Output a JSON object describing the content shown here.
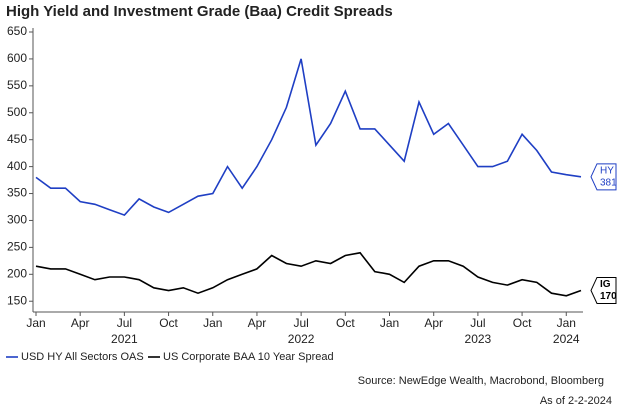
{
  "chart_data": {
    "type": "line",
    "title": "High Yield and Investment Grade (Baa) Credit Spreads",
    "source": "Source: NewEdge Wealth, Macrobond, Bloomberg",
    "note": "As of 2-2-2024",
    "x": [
      "2021-01",
      "2021-02",
      "2021-03",
      "2021-04",
      "2021-05",
      "2021-06",
      "2021-07",
      "2021-08",
      "2021-09",
      "2021-10",
      "2021-11",
      "2021-12",
      "2022-01",
      "2022-02",
      "2022-03",
      "2022-04",
      "2022-05",
      "2022-06",
      "2022-07",
      "2022-08",
      "2022-09",
      "2022-10",
      "2022-11",
      "2022-12",
      "2023-01",
      "2023-02",
      "2023-03",
      "2023-04",
      "2023-05",
      "2023-06",
      "2023-07",
      "2023-08",
      "2023-09",
      "2023-10",
      "2023-11",
      "2023-12",
      "2024-01",
      "2024-02"
    ],
    "xlim": [
      "2021-01",
      "2024-02"
    ],
    "xticks": [
      {
        "value": "2021-01",
        "label": "Jan"
      },
      {
        "value": "2021-04",
        "label": "Apr"
      },
      {
        "value": "2021-07",
        "label": "Jul"
      },
      {
        "value": "2021-10",
        "label": "Oct"
      },
      {
        "value": "2022-01",
        "label": "Jan"
      },
      {
        "value": "2022-04",
        "label": "Apr"
      },
      {
        "value": "2022-07",
        "label": "Jul"
      },
      {
        "value": "2022-10",
        "label": "Oct"
      },
      {
        "value": "2023-01",
        "label": "Jan"
      },
      {
        "value": "2023-04",
        "label": "Apr"
      },
      {
        "value": "2023-07",
        "label": "Jul"
      },
      {
        "value": "2023-10",
        "label": "Oct"
      },
      {
        "value": "2024-01",
        "label": "Jan"
      }
    ],
    "x_group_labels": [
      {
        "value": "2021-07",
        "label": "2021"
      },
      {
        "value": "2022-07",
        "label": "2022"
      },
      {
        "value": "2023-07",
        "label": "2023"
      },
      {
        "value": "2024-01",
        "label": "2024"
      }
    ],
    "ylim": [
      130,
      650
    ],
    "yticks": [
      150,
      200,
      250,
      300,
      350,
      400,
      450,
      500,
      550,
      600,
      650
    ],
    "series": [
      {
        "name": "USD HY All Sectors OAS",
        "end_label": "HY",
        "color": "#1f3fc4",
        "values": [
          380,
          360,
          360,
          335,
          330,
          320,
          310,
          340,
          325,
          315,
          330,
          345,
          350,
          400,
          360,
          400,
          450,
          510,
          600,
          440,
          480,
          540,
          470,
          470,
          440,
          410,
          520,
          460,
          480,
          440,
          400,
          400,
          410,
          460,
          430,
          390,
          385,
          381
        ]
      },
      {
        "name": "US Corporate BAA 10 Year Spread",
        "end_label": "IG",
        "color": "#000000",
        "values": [
          215,
          210,
          210,
          200,
          190,
          195,
          195,
          190,
          175,
          170,
          175,
          165,
          175,
          190,
          200,
          210,
          235,
          220,
          215,
          225,
          220,
          235,
          240,
          205,
          200,
          185,
          215,
          225,
          225,
          215,
          195,
          185,
          180,
          190,
          185,
          165,
          160,
          170
        ]
      }
    ]
  }
}
